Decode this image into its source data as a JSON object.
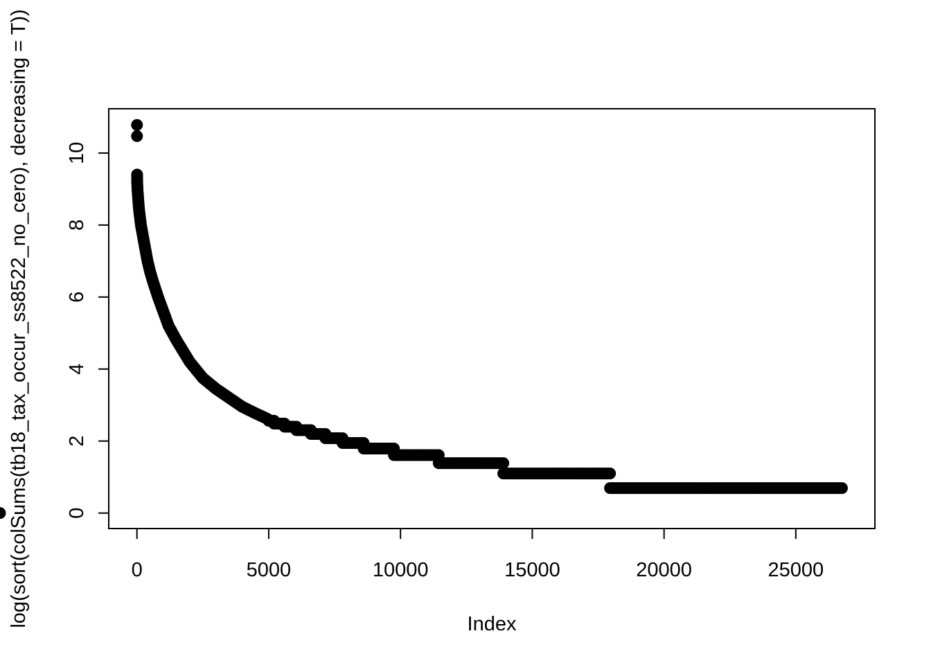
{
  "chart_data": {
    "type": "scatter",
    "title": "",
    "xlabel": "Index",
    "ylabel": "log(sort(colSums(tb18_tax_occur_ss8522_no_cero), decreasing = T))",
    "xlim": [
      -1070,
      28000
    ],
    "ylim": [
      -0.43,
      11.23
    ],
    "x_ticks": [
      0,
      5000,
      10000,
      15000,
      20000,
      25000
    ],
    "y_ticks": [
      0,
      2,
      4,
      6,
      8,
      10
    ],
    "grid": false,
    "legend": "none",
    "point_color": "#000000",
    "n_points": 26750,
    "curve": [
      [
        1,
        10.78
      ],
      [
        2,
        10.47
      ],
      [
        5,
        9.4
      ],
      [
        10,
        9.2
      ],
      [
        20,
        9.0
      ],
      [
        40,
        8.8
      ],
      [
        70,
        8.5
      ],
      [
        100,
        8.3
      ],
      [
        150,
        8.0
      ],
      [
        200,
        7.8
      ],
      [
        300,
        7.4
      ],
      [
        400,
        7.0
      ],
      [
        500,
        6.7
      ],
      [
        600,
        6.45
      ],
      [
        800,
        6.0
      ],
      [
        1000,
        5.6
      ],
      [
        1200,
        5.2
      ],
      [
        1500,
        4.8
      ],
      [
        2000,
        4.2
      ],
      [
        2500,
        3.75
      ],
      [
        3000,
        3.45
      ],
      [
        3500,
        3.2
      ],
      [
        4000,
        2.95
      ],
      [
        4500,
        2.77
      ],
      [
        5000,
        2.6
      ]
    ],
    "plateaus": [
      {
        "x_start": 5000,
        "x_end": 5200,
        "y": 2.565
      },
      {
        "x_start": 5200,
        "x_end": 5600,
        "y": 2.485
      },
      {
        "x_start": 5600,
        "x_end": 6050,
        "y": 2.398
      },
      {
        "x_start": 6050,
        "x_end": 6600,
        "y": 2.303
      },
      {
        "x_start": 6600,
        "x_end": 7150,
        "y": 2.197
      },
      {
        "x_start": 7150,
        "x_end": 7800,
        "y": 2.079
      },
      {
        "x_start": 7800,
        "x_end": 8600,
        "y": 1.946
      },
      {
        "x_start": 8600,
        "x_end": 9750,
        "y": 1.792
      },
      {
        "x_start": 9750,
        "x_end": 11450,
        "y": 1.609
      },
      {
        "x_start": 11450,
        "x_end": 13900,
        "y": 1.386
      },
      {
        "x_start": 13900,
        "x_end": 17950,
        "y": 1.099
      },
      {
        "x_start": 17950,
        "x_end": 26750,
        "y": 0.693
      }
    ]
  }
}
